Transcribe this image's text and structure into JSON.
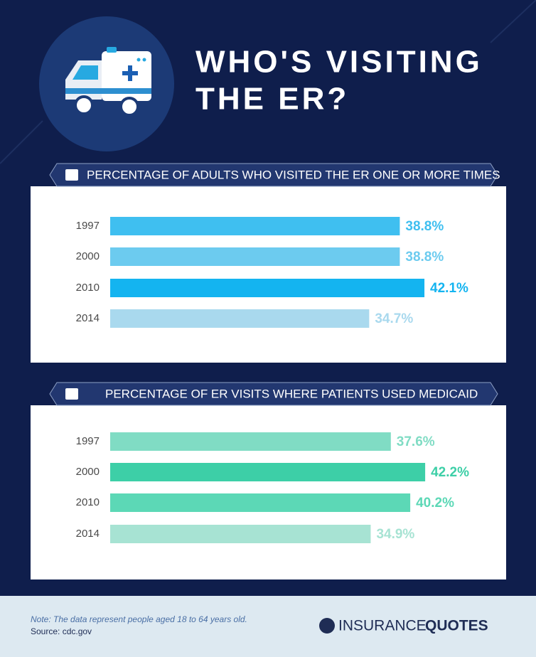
{
  "title_lines": [
    "WHO'S VISITING",
    "THE ER?"
  ],
  "chart_data": [
    {
      "type": "bar",
      "orientation": "horizontal",
      "title": "PERCENTAGE OF ADULTS WHO VISITED THE ER ONE OR MORE TIMES",
      "categories": [
        "1997",
        "2000",
        "2010",
        "2014"
      ],
      "values": [
        38.8,
        38.8,
        42.1,
        34.7
      ],
      "value_labels": [
        "38.8%",
        "38.8%",
        "42.1%",
        "34.7%"
      ],
      "colors": [
        "#3fbff0",
        "#6ccbef",
        "#14b4f0",
        "#a9d9ee"
      ]
    },
    {
      "type": "bar",
      "orientation": "horizontal",
      "title": "PERCENTAGE OF ER VISITS WHERE PATIENTS USED MEDICAID",
      "categories": [
        "1997",
        "2000",
        "2010",
        "2014"
      ],
      "values": [
        37.6,
        42.2,
        40.2,
        34.9
      ],
      "value_labels": [
        "37.6%",
        "42.2%",
        "40.2%",
        "34.9%"
      ],
      "colors": [
        "#80dcc4",
        "#3dcfa7",
        "#5cd8b6",
        "#a7e3d3"
      ]
    }
  ],
  "footer": {
    "note": "Note: The data represent people aged 18 to 64 years old.",
    "source": "Source: cdc.gov",
    "logo": [
      "INSURANCE",
      "QUOTES"
    ]
  }
}
